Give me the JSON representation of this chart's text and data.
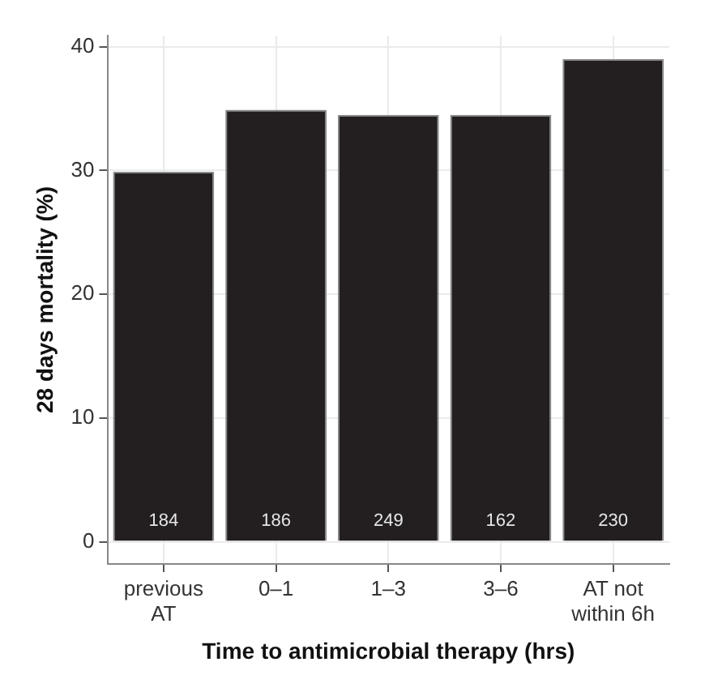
{
  "chart_data": {
    "type": "bar",
    "xlabel": "Time to antimicrobial therapy (hrs)",
    "ylabel": "28 days mortality (%)",
    "categories": [
      "previous\nAT",
      "0–1",
      "1–3",
      "3–6",
      "AT not\nwithin 6h"
    ],
    "values": [
      29.9,
      34.9,
      34.5,
      34.5,
      39.0
    ],
    "color": "#231f20",
    "ylim": [
      -1.8,
      40.9
    ],
    "yticks": [
      0,
      10,
      20,
      30,
      40
    ],
    "grid": true,
    "annotations": [
      "184",
      "186",
      "249",
      "162",
      "230"
    ]
  }
}
